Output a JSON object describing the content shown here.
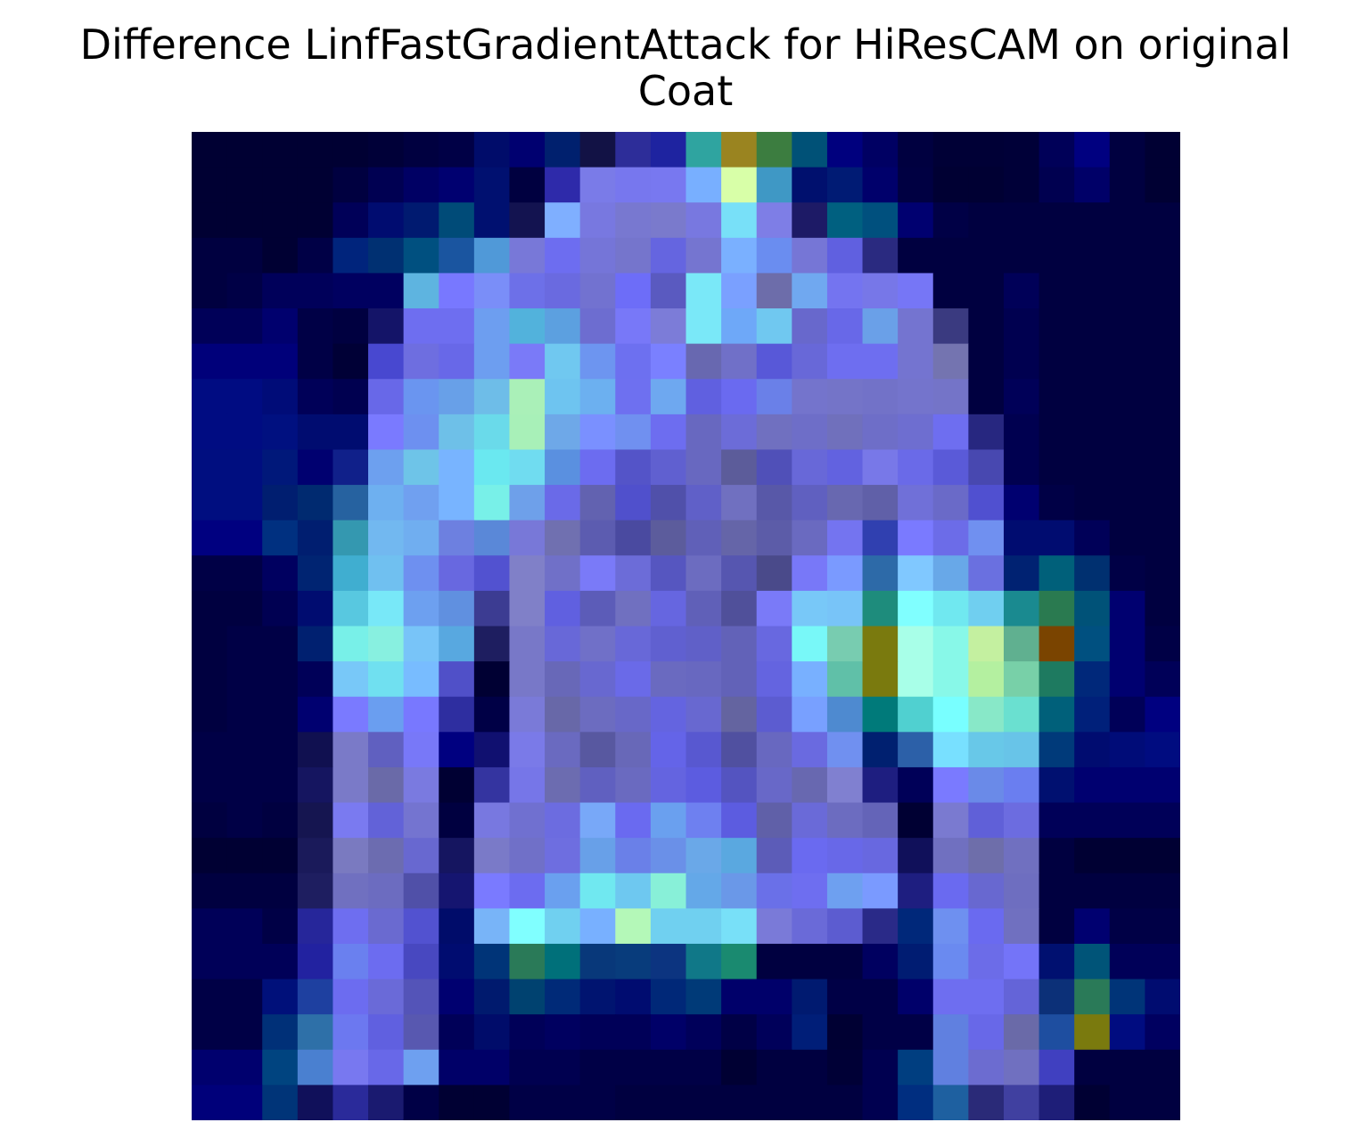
{
  "chart_data": {
    "type": "heatmap",
    "title": "Difference LinfFastGradientAttack for HiResCAM on original",
    "subtitle": "Coat",
    "xlabel": "",
    "ylabel": "",
    "axes_visible": false,
    "grid": false,
    "legend": "none",
    "rows": 28,
    "cols": 28,
    "cells": [
      [
        "#000033",
        "#000033",
        "#000033",
        "#000033",
        "#000033",
        "#000038",
        "#000040",
        "#000046",
        "#000c6a",
        "#000070",
        "#00206e",
        "#121245",
        "#2d2d99",
        "#1e23a0",
        "#2fa4a0",
        "#9a8420",
        "#3c7d40",
        "#005177",
        "#00007e",
        "#000063",
        "#000040",
        "#000036",
        "#000036",
        "#000038",
        "#000058",
        "#000080",
        "#000040",
        "#000033"
      ],
      [
        "#000033",
        "#000033",
        "#000033",
        "#000033",
        "#000040",
        "#000052",
        "#000064",
        "#000070",
        "#001070",
        "#000040",
        "#2e2aaa",
        "#7a7be8",
        "#7777ee",
        "#7878f0",
        "#78afff",
        "#d8ffa8",
        "#3f98c5",
        "#00106e",
        "#001b74",
        "#00006b",
        "#000042",
        "#000033",
        "#000033",
        "#000038",
        "#000050",
        "#000068",
        "#000040",
        "#000033"
      ],
      [
        "#000033",
        "#000033",
        "#000033",
        "#000033",
        "#000058",
        "#000c70",
        "#001a70",
        "#004b78",
        "#001070",
        "#131350",
        "#7fafff",
        "#7878e0",
        "#7878d0",
        "#7a7acc",
        "#7878e0",
        "#78e0f8",
        "#7e7ee6",
        "#1d1a66",
        "#006080",
        "#00507e",
        "#000070",
        "#000046",
        "#000040",
        "#000040",
        "#000040",
        "#000040",
        "#000040",
        "#000040"
      ],
      [
        "#000040",
        "#000040",
        "#000033",
        "#000046",
        "#00247c",
        "#003072",
        "#005080",
        "#1a55a0",
        "#5099d8",
        "#7878d8",
        "#6d6df0",
        "#7575d8",
        "#7575cc",
        "#6565e0",
        "#7575d0",
        "#7ab0ff",
        "#6a8df0",
        "#7676d6",
        "#6060e0",
        "#2a2a80",
        "#000040",
        "#000040",
        "#000040",
        "#000040",
        "#000040",
        "#000040",
        "#000040",
        "#000040"
      ],
      [
        "#000040",
        "#000046",
        "#00005a",
        "#00005a",
        "#000060",
        "#000060",
        "#5eb4e0",
        "#7878ff",
        "#7a8ef8",
        "#6d70e8",
        "#6a6ae0",
        "#7272d0",
        "#6d6df8",
        "#5a5ac0",
        "#7ae8f8",
        "#7aa0ff",
        "#6d6daa",
        "#70a8f0",
        "#7474f0",
        "#7777e8",
        "#7676f6",
        "#000040",
        "#000040",
        "#000058",
        "#000040",
        "#000040",
        "#000040",
        "#000040"
      ],
      [
        "#000058",
        "#000058",
        "#00006e",
        "#000046",
        "#000040",
        "#141468",
        "#6e6ef0",
        "#6e6ef0",
        "#6d9ef0",
        "#52b2dc",
        "#5ca0e0",
        "#6d6dd0",
        "#7878f8",
        "#7c7cd8",
        "#7ae8f8",
        "#6ea8f8",
        "#70c8f0",
        "#6868cc",
        "#6868e8",
        "#6aa0e8",
        "#7474d0",
        "#3a3a80",
        "#000040",
        "#000050",
        "#000040",
        "#000040",
        "#000040",
        "#000040"
      ],
      [
        "#00007a",
        "#00007a",
        "#00007a",
        "#000046",
        "#000036",
        "#4848d0",
        "#6e6ee0",
        "#6868e8",
        "#6d9ef0",
        "#7a7af8",
        "#70c8f0",
        "#6d95f0",
        "#6d70f0",
        "#7a80ff",
        "#6868b0",
        "#7070c8",
        "#5858d8",
        "#6868d8",
        "#6e6ef0",
        "#6e6ef0",
        "#7474d0",
        "#7474b0",
        "#000040",
        "#000050",
        "#000040",
        "#000040",
        "#000040",
        "#000040"
      ],
      [
        "#000c82",
        "#000c82",
        "#000c78",
        "#000058",
        "#000050",
        "#6868e8",
        "#6a95f0",
        "#68a0e8",
        "#6ebde8",
        "#aaf0b8",
        "#6ec4f0",
        "#6cb0f0",
        "#6e70f0",
        "#6ea8f0",
        "#6060e0",
        "#6a6af0",
        "#6a80e8",
        "#7474cc",
        "#7474c8",
        "#7272c8",
        "#7474cc",
        "#7474c8",
        "#000040",
        "#000058",
        "#000040",
        "#000040",
        "#000040",
        "#000040"
      ],
      [
        "#000c82",
        "#000c82",
        "#001080",
        "#000c70",
        "#000c70",
        "#7a7aff",
        "#6d90f0",
        "#6ec0e8",
        "#6adaea",
        "#a8f0b8",
        "#6ea8e8",
        "#7a90ff",
        "#7090f0",
        "#6d6df0",
        "#6868c0",
        "#6c6cd8",
        "#7070c0",
        "#6e6ec8",
        "#7070bc",
        "#6e6ec8",
        "#6e6ed0",
        "#6e6ef0",
        "#272780",
        "#000050",
        "#000040",
        "#000040",
        "#000040",
        "#000040"
      ],
      [
        "#000e80",
        "#000e80",
        "#00187a",
        "#000070",
        "#10208a",
        "#6da0ef",
        "#6ec4e8",
        "#78b4ff",
        "#6ae8f0",
        "#70dcf0",
        "#5a90e0",
        "#6c6cf0",
        "#5454c8",
        "#6060d0",
        "#6868c0",
        "#5c5c9a",
        "#5050b8",
        "#6868d8",
        "#6262e0",
        "#7878e8",
        "#6a6ae8",
        "#5a5ad8",
        "#4848b0",
        "#000050",
        "#000040",
        "#000040",
        "#000040",
        "#000040"
      ],
      [
        "#000e80",
        "#000e80",
        "#001e70",
        "#002a70",
        "#2662a0",
        "#6eb0f0",
        "#70a0f0",
        "#78b4ff",
        "#78f0e8",
        "#6ea0ea",
        "#6a6ae8",
        "#6262b0",
        "#5050cc",
        "#5050aa",
        "#6060c8",
        "#7070c0",
        "#5858a8",
        "#6060c0",
        "#6868b0",
        "#6060a8",
        "#7070d8",
        "#6a6ac8",
        "#5050d0",
        "#000070",
        "#000046",
        "#000040",
        "#000040",
        "#000040"
      ],
      [
        "#000080",
        "#000080",
        "#003080",
        "#001e70",
        "#3498b0",
        "#72b8f0",
        "#70aef0",
        "#6d80e0",
        "#5a88d8",
        "#7878d8",
        "#7070b0",
        "#5c5cb0",
        "#4a4aa0",
        "#5c5c9c",
        "#6060b8",
        "#6565a8",
        "#5c5ca8",
        "#6a6ac0",
        "#7474f0",
        "#3040b0",
        "#7a7aff",
        "#6c6ce8",
        "#7090f0",
        "#000c70",
        "#000c70",
        "#000058",
        "#000040",
        "#000040"
      ],
      [
        "#000046",
        "#000046",
        "#000060",
        "#002472",
        "#40aed0",
        "#70c0f0",
        "#6e90f0",
        "#6868e0",
        "#5252d0",
        "#8080c8",
        "#7070c8",
        "#7a7af8",
        "#6c6cd8",
        "#5656c0",
        "#6c6cc0",
        "#5656b0",
        "#4a4a8a",
        "#7878f8",
        "#7a9aff",
        "#2d6aa8",
        "#80c8ff",
        "#68a8e8",
        "#6a70e0",
        "#002272",
        "#00607a",
        "#003070",
        "#000046",
        "#000040"
      ],
      [
        "#000040",
        "#000040",
        "#000052",
        "#000c70",
        "#58c8e0",
        "#78e8f8",
        "#6da0f0",
        "#6090e0",
        "#3c3c92",
        "#8080c8",
        "#6060e0",
        "#5c5cb8",
        "#7070c0",
        "#6666e0",
        "#6060b8",
        "#50509a",
        "#7a7af8",
        "#78c8f8",
        "#78c4f8",
        "#1e8c7c",
        "#80ffff",
        "#70e8f0",
        "#70cff0",
        "#1a8a90",
        "#2a7a50",
        "#005278",
        "#000070",
        "#000040"
      ],
      [
        "#000040",
        "#000046",
        "#000046",
        "#002070",
        "#78f0e8",
        "#88f0e0",
        "#78c4f8",
        "#58a8e0",
        "#1e1e60",
        "#7878c8",
        "#6868d8",
        "#7070c8",
        "#6868d8",
        "#6060d0",
        "#6060c8",
        "#6262b8",
        "#6868e0",
        "#78f8f8",
        "#78ccb0",
        "#7a7a0e",
        "#a8ffe8",
        "#88f8e8",
        "#c4f0a0",
        "#60b090",
        "#7a4400",
        "#005080",
        "#000070",
        "#000046"
      ],
      [
        "#000040",
        "#000046",
        "#000046",
        "#000058",
        "#78c8f8",
        "#70e0f0",
        "#78bcff",
        "#5050c8",
        "#000033",
        "#7878c8",
        "#6868b8",
        "#6868d0",
        "#6a6ae8",
        "#6a6ac0",
        "#6868c0",
        "#6262b8",
        "#6464e0",
        "#78b0ff",
        "#60c0a8",
        "#7a7a0e",
        "#a8ffe8",
        "#88f8e8",
        "#b4f0a0",
        "#78d0a8",
        "#1e7a60",
        "#00287a",
        "#000070",
        "#000058"
      ],
      [
        "#000040",
        "#000046",
        "#000046",
        "#000070",
        "#7a7aff",
        "#6a9ef0",
        "#7878ff",
        "#2e2ea0",
        "#000046",
        "#7a7ad8",
        "#6868a8",
        "#6c6cc0",
        "#6868c8",
        "#6464e0",
        "#6868d0",
        "#6464a0",
        "#5c5cd0",
        "#78a0ff",
        "#4e8ad0",
        "#007a7a",
        "#50d0d0",
        "#78ffff",
        "#88e8c8",
        "#6ae0d0",
        "#00607a",
        "#00207a",
        "#000058",
        "#000080"
      ],
      [
        "#000046",
        "#000046",
        "#000046",
        "#101050",
        "#7a7ac8",
        "#6060c0",
        "#7878f8",
        "#000080",
        "#101070",
        "#7a7ae8",
        "#6a6ac0",
        "#5858a0",
        "#6868b8",
        "#6464e8",
        "#5858d0",
        "#5050a0",
        "#6868c0",
        "#6a6ae0",
        "#7090f0",
        "#002070",
        "#2c60a8",
        "#78e0ff",
        "#68c8e8",
        "#68c4e8",
        "#003a7a",
        "#000c70",
        "#000c78",
        "#000c80"
      ],
      [
        "#000046",
        "#000046",
        "#000046",
        "#151560",
        "#7a7ac8",
        "#6a6aa8",
        "#7a7ae0",
        "#000033",
        "#3434a0",
        "#7676e8",
        "#6c6cb0",
        "#6060c0",
        "#6a6ac0",
        "#6464e0",
        "#5c5ce0",
        "#5454c0",
        "#6868c8",
        "#6868b0",
        "#8080d0",
        "#1e1e80",
        "#000058",
        "#7a7aff",
        "#6a8ae8",
        "#6a7ef0",
        "#001070",
        "#000070",
        "#000070",
        "#000070"
      ],
      [
        "#000040",
        "#000046",
        "#000040",
        "#151550",
        "#7a7af0",
        "#6262d8",
        "#7474d0",
        "#000040",
        "#7878e0",
        "#7070d0",
        "#6c6ce0",
        "#78a8f8",
        "#6a6af0",
        "#6aa0ef",
        "#6e80f0",
        "#5c5ce0",
        "#6060a8",
        "#6a6ad8",
        "#6c6cc0",
        "#6464b8",
        "#000033",
        "#7a7ad0",
        "#6060d8",
        "#6c6ce0",
        "#000058",
        "#000058",
        "#000058",
        "#000058"
      ],
      [
        "#000033",
        "#000033",
        "#000033",
        "#1a1a5a",
        "#7a7ac0",
        "#6c6cb0",
        "#6868d0",
        "#151560",
        "#7a7ac8",
        "#7070c8",
        "#6e6ee0",
        "#68a0e8",
        "#6a80e8",
        "#6a90e8",
        "#6aa8e8",
        "#5aa8e0",
        "#5c5cb8",
        "#6a6af0",
        "#6868e8",
        "#6868e0",
        "#10105a",
        "#7070c0",
        "#6e6eaa",
        "#7070c0",
        "#000040",
        "#000033",
        "#000033",
        "#000033"
      ],
      [
        "#000040",
        "#000040",
        "#000040",
        "#1e1e60",
        "#7070c0",
        "#6c6cc0",
        "#5050a8",
        "#151570",
        "#7a7aff",
        "#6c6cf0",
        "#6aa0ef",
        "#70e8f0",
        "#6ec8f0",
        "#88f0d8",
        "#64a8e8",
        "#6a98e8",
        "#6a70e8",
        "#6e6ef0",
        "#6ea0f0",
        "#7a9aff",
        "#1e1e80",
        "#6a6af0",
        "#6868d0",
        "#6e6ec0",
        "#000040",
        "#000040",
        "#000040",
        "#000040"
      ],
      [
        "#000058",
        "#000058",
        "#000046",
        "#26269a",
        "#6e6ef0",
        "#6a6ad0",
        "#5252d0",
        "#000c6a",
        "#78b4f8",
        "#80ffff",
        "#70d0f0",
        "#78b0ff",
        "#b4f8b8",
        "#70d0f0",
        "#70d0f0",
        "#78e0f8",
        "#7a7ad8",
        "#6a6ad8",
        "#5c5cd0",
        "#2a2a88",
        "#00287a",
        "#6e90f0",
        "#6a6af0",
        "#7070c0",
        "#000040",
        "#000070",
        "#000046",
        "#000046"
      ],
      [
        "#000058",
        "#000058",
        "#000058",
        "#2222a0",
        "#6a80ef",
        "#6c6cf0",
        "#4848c0",
        "#000c70",
        "#003478",
        "#2a7a58",
        "#00707a",
        "#08387a",
        "#083c7c",
        "#0c3480",
        "#107888",
        "#1a8a70",
        "#000040",
        "#000040",
        "#000040",
        "#000060",
        "#001c72",
        "#6a8af0",
        "#6c6ce8",
        "#7474f8",
        "#001070",
        "#005478",
        "#000058",
        "#000058"
      ],
      [
        "#000046",
        "#000046",
        "#00107a",
        "#1e40a0",
        "#6c6cf0",
        "#6a6ad8",
        "#5454b8",
        "#000070",
        "#001a6e",
        "#004270",
        "#002a78",
        "#001470",
        "#000c70",
        "#002878",
        "#003a78",
        "#00006a",
        "#00006a",
        "#001a70",
        "#000046",
        "#000046",
        "#00006a",
        "#6e6ef0",
        "#6e6ef0",
        "#6464d8",
        "#0c3078",
        "#2a7a58",
        "#003478",
        "#000c70"
      ],
      [
        "#000046",
        "#000046",
        "#003078",
        "#2e70a8",
        "#6c78f0",
        "#6060e0",
        "#5858b0",
        "#000058",
        "#000c6a",
        "#000058",
        "#000060",
        "#000058",
        "#000058",
        "#000068",
        "#00005a",
        "#000046",
        "#00005a",
        "#001e78",
        "#000033",
        "#000046",
        "#000046",
        "#6080e0",
        "#6868e8",
        "#6a6aa8",
        "#1e4ea0",
        "#7a7a0e",
        "#000c80",
        "#000060"
      ],
      [
        "#00006e",
        "#00006e",
        "#004480",
        "#4a80d0",
        "#7878f0",
        "#6868e8",
        "#6ea0f0",
        "#000068",
        "#000068",
        "#000050",
        "#000050",
        "#000046",
        "#000046",
        "#000046",
        "#000046",
        "#000033",
        "#000040",
        "#000040",
        "#000036",
        "#000050",
        "#003e80",
        "#6080e0",
        "#6c6cd0",
        "#7070c0",
        "#4040c0",
        "#000040",
        "#000040",
        "#000040"
      ],
      [
        "#00007a",
        "#00007a",
        "#003478",
        "#10105a",
        "#2a2a9a",
        "#1a1a70",
        "#000046",
        "#000033",
        "#000033",
        "#000046",
        "#000046",
        "#000046",
        "#000040",
        "#000040",
        "#000040",
        "#000040",
        "#000040",
        "#000040",
        "#000040",
        "#000050",
        "#002e80",
        "#1e60a0",
        "#2a2a78",
        "#4040a0",
        "#1e1e78",
        "#000033",
        "#000040",
        "#000040"
      ]
    ]
  }
}
